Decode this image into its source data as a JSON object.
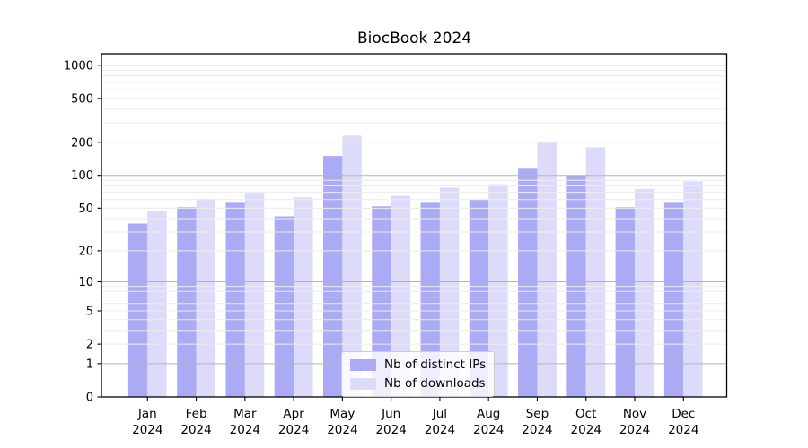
{
  "title": "BiocBook 2024",
  "chart_data": {
    "type": "bar",
    "title": "BiocBook 2024",
    "scale": "log1p (symlog-like: position ∝ log10(1+value))",
    "categories": [
      "Jan 2024",
      "Feb 2024",
      "Mar 2024",
      "Apr 2024",
      "May 2024",
      "Jun 2024",
      "Jul 2024",
      "Aug 2024",
      "Sep 2024",
      "Oct 2024",
      "Nov 2024",
      "Dec 2024"
    ],
    "series": [
      {
        "name": "Nb of distinct IPs",
        "color": "#aaaaf5",
        "values": [
          36,
          51,
          56,
          42,
          150,
          52,
          56,
          60,
          115,
          100,
          51,
          56
        ]
      },
      {
        "name": "Nb of downloads",
        "color": "#dcdcfa",
        "values": [
          47,
          61,
          69,
          63,
          230,
          65,
          77,
          83,
          203,
          180,
          75,
          88
        ]
      }
    ],
    "xlabel": "",
    "ylabel": "",
    "y_ticks": [
      0,
      1,
      2,
      5,
      10,
      20,
      50,
      100,
      200,
      500,
      1000
    ],
    "ylim": [
      0,
      1270
    ],
    "grid": "horizontal major (1,10,100,1000) and faint log minors, drawn above bars",
    "legend_position": "lower center inside plot",
    "colors": {
      "bar_distinct_ips": "#aaaaf5",
      "bar_downloads": "#dcdcfa",
      "major_grid": "#b5b5b5",
      "minor_grid": "#ececec",
      "axis": "#000000",
      "background": "#ffffff"
    }
  }
}
